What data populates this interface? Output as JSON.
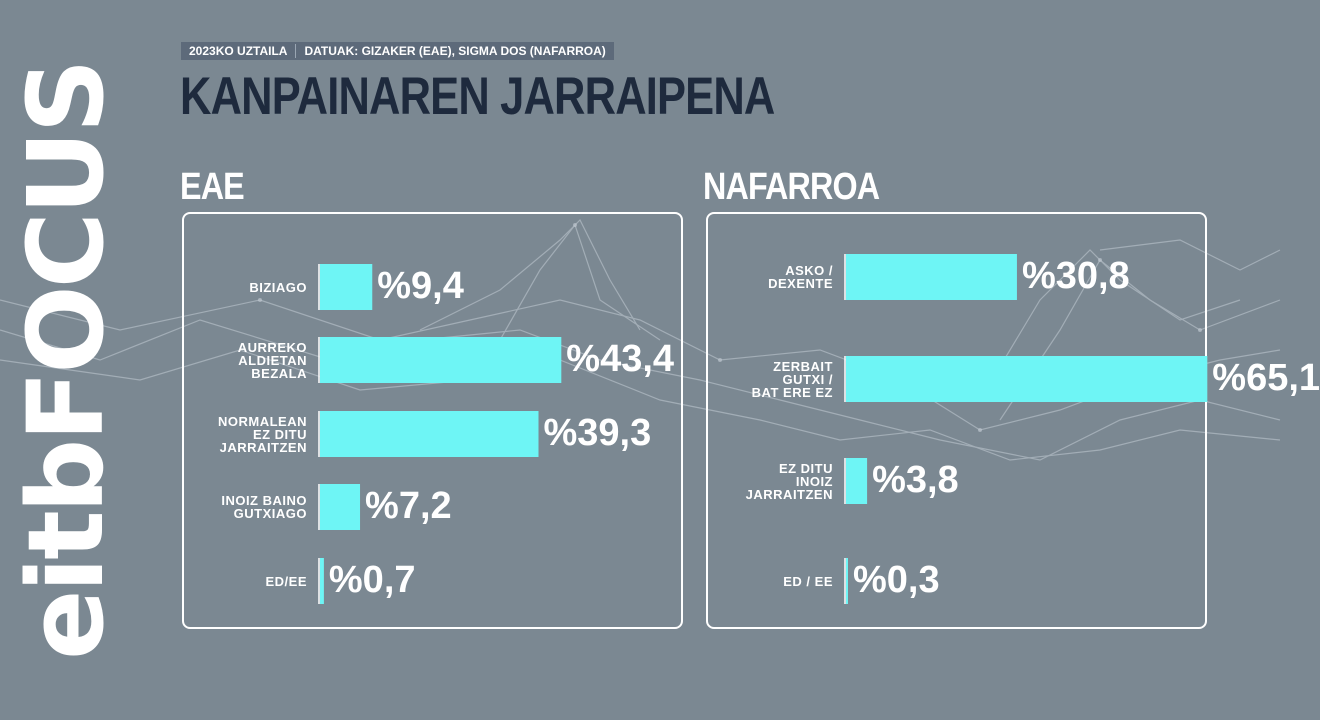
{
  "header": {
    "date": "2023KO UZTAILA",
    "source": "DATUAK: GIZAKER (EAE), SIGMA DOS (NAFARROA)",
    "title": "KANPAINAREN JARRAIPENA"
  },
  "logo": {
    "text": "eitbFOCUS"
  },
  "colors": {
    "background": "#7b8892",
    "bar": "#6ef5f5",
    "title": "#1e2a3d",
    "tag_bg": "#5d6a7a"
  },
  "chart_data": [
    {
      "type": "bar",
      "orientation": "horizontal",
      "title": "EAE",
      "categories": [
        [
          "BIZIAGO"
        ],
        [
          "AURREKO",
          "ALDIETAN",
          "BEZALA"
        ],
        [
          "NORMALEAN",
          "EZ DITU",
          "JARRAITZEN"
        ],
        [
          "INOIZ BAINO",
          "GUTXIAGO"
        ],
        [
          "ED/EE"
        ]
      ],
      "values": [
        9.4,
        43.4,
        39.3,
        7.2,
        0.7
      ],
      "value_labels": [
        "%9,4",
        "%43,4",
        "%39,3",
        "%7,2",
        "%0,7"
      ]
    },
    {
      "type": "bar",
      "orientation": "horizontal",
      "title": "NAFARROA",
      "categories": [
        [
          "ASKO /",
          "DEXENTE"
        ],
        [
          "ZERBAIT",
          "GUTXI /",
          "BAT ERE EZ"
        ],
        [
          "EZ DITU",
          "INOIZ",
          "JARRAITZEN"
        ],
        [
          "ED / EE"
        ]
      ],
      "values": [
        30.8,
        65.1,
        3.8,
        0.3
      ],
      "value_labels": [
        "%30,8",
        "%65,1",
        "%3,8",
        "%0,3"
      ]
    }
  ]
}
